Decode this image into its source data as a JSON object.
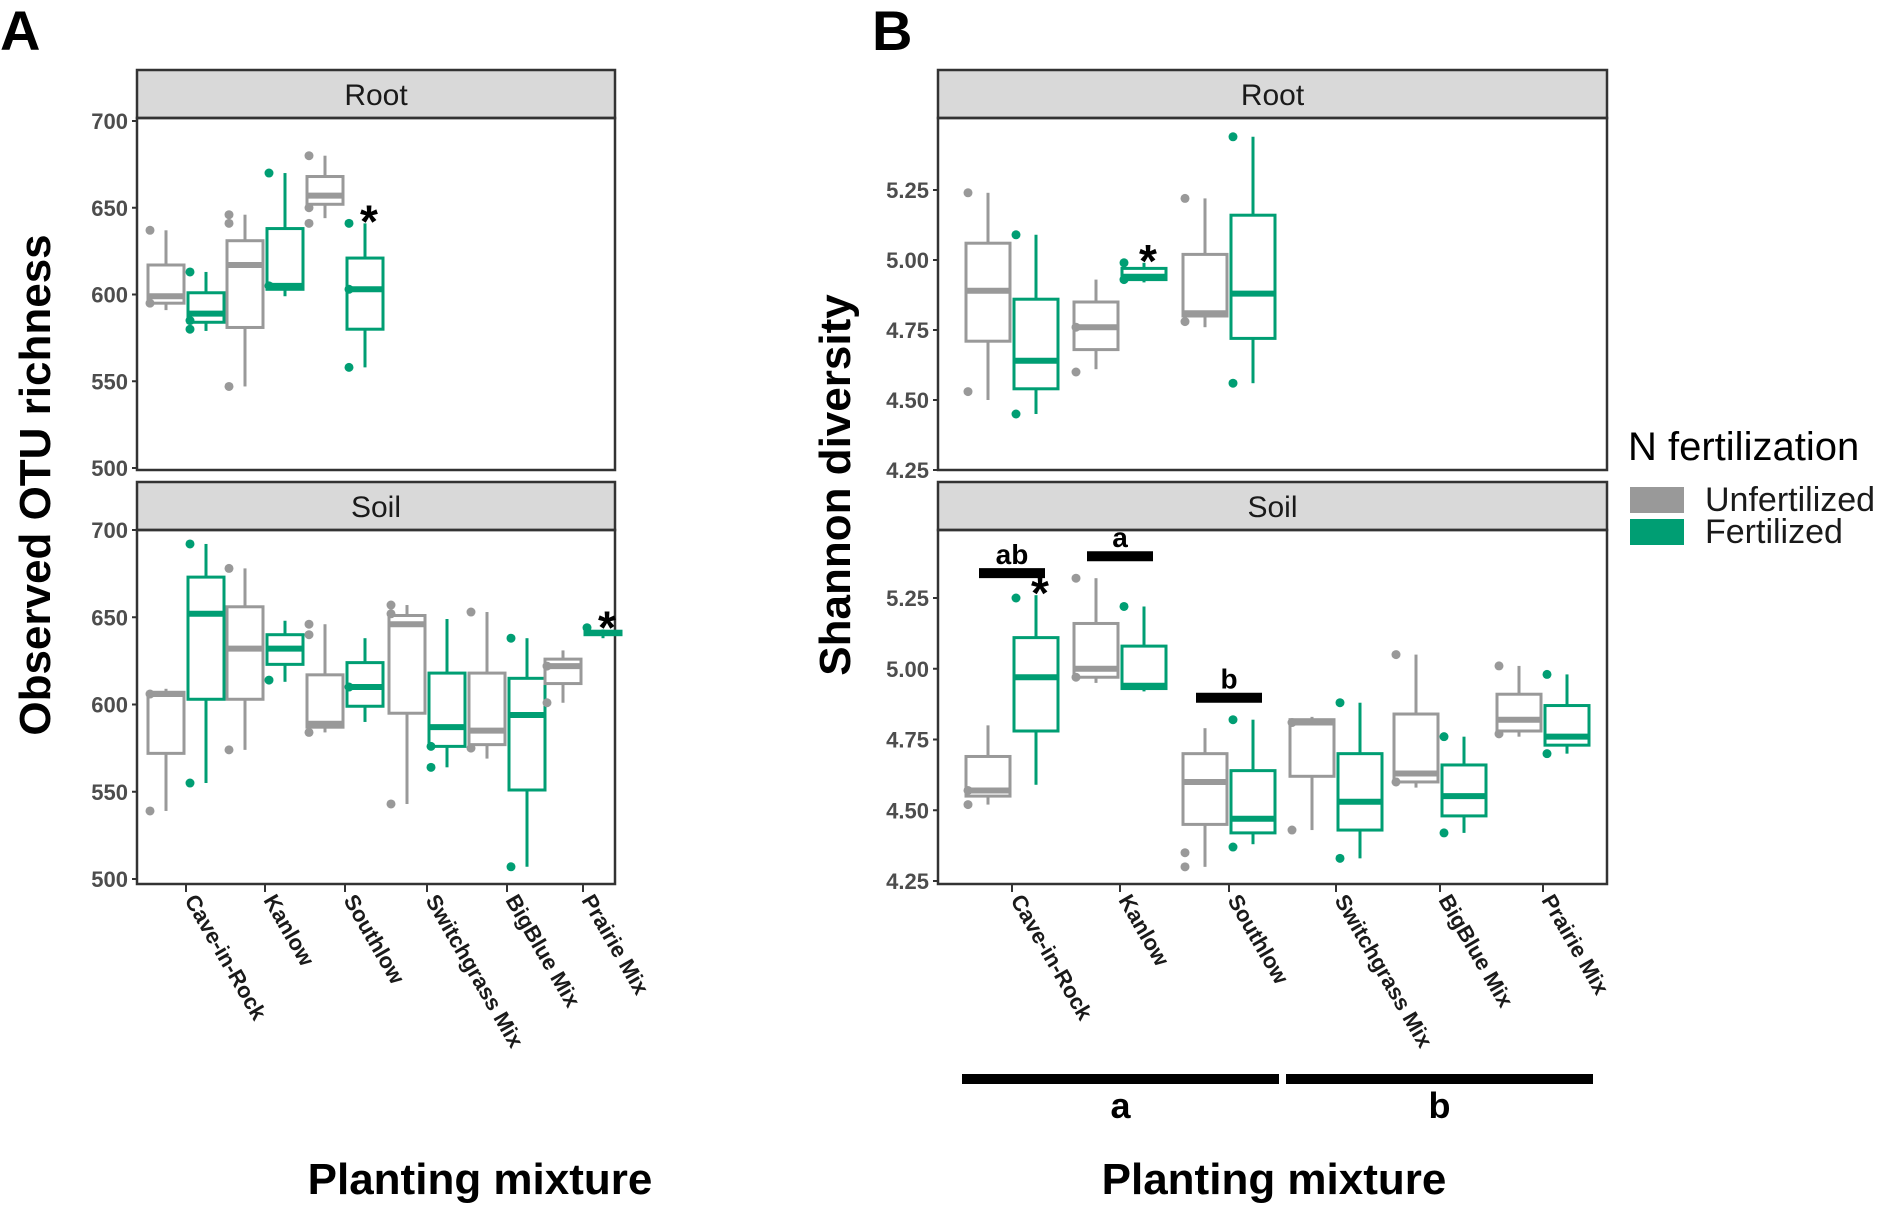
{
  "figure": {
    "panel_labels": [
      "A",
      "B"
    ],
    "legend": {
      "title": "N fertilization",
      "items": [
        {
          "label": "Unfertilized",
          "color": "#999999"
        },
        {
          "label": "Fertilized",
          "color": "#009E73"
        }
      ]
    },
    "colors": {
      "unfertilized": "#999999",
      "fertilized": "#009E73",
      "strip": "#d9d9d9"
    },
    "group_bars": [
      {
        "label": "a",
        "from": "Cave-in-Rock",
        "to": "Southlow"
      },
      {
        "label": "b",
        "from": "Switchgrass Mix",
        "to": "Prairie Mix"
      }
    ]
  },
  "chart_data": [
    {
      "type": "box",
      "panel": "A",
      "ylabel": "Observed OTU richness",
      "xlabel": "Planting mixture",
      "categories": [
        "Cave-in-Rock",
        "Kanlow",
        "Southlow",
        "Switchgrass Mix",
        "BigBlue Mix",
        "Prairie Mix"
      ],
      "ylim": [
        500,
        700
      ],
      "yticks": [
        500,
        550,
        600,
        650,
        700
      ],
      "facets": [
        {
          "name": "Root",
          "groups": [
            {
              "category": "Cave-in-Rock",
              "series": "Unfertilized",
              "min": 591,
              "q1": 595,
              "median": 599,
              "q3": 617,
              "max": 637,
              "points": [
                637,
                595
              ]
            },
            {
              "category": "Cave-in-Rock",
              "series": "Fertilized",
              "min": 579,
              "q1": 584,
              "median": 589,
              "q3": 601,
              "max": 613,
              "points": [
                580,
                585,
                613
              ]
            },
            {
              "category": "Kanlow",
              "series": "Unfertilized",
              "min": 547,
              "q1": 581,
              "median": 617,
              "q3": 631,
              "max": 646,
              "points": [
                547,
                641,
                646
              ]
            },
            {
              "category": "Kanlow",
              "series": "Fertilized",
              "min": 599,
              "q1": 603,
              "median": 605,
              "q3": 638,
              "max": 670,
              "points": [
                670,
                605
              ]
            },
            {
              "category": "Southlow",
              "series": "Unfertilized",
              "min": 644,
              "q1": 652,
              "median": 657,
              "q3": 668,
              "max": 680,
              "points": [
                680,
                650,
                641
              ]
            },
            {
              "category": "Southlow",
              "series": "Fertilized",
              "min": 558,
              "q1": 580,
              "median": 603,
              "q3": 621,
              "max": 641,
              "points": [
                641,
                558,
                603
              ]
            }
          ],
          "annotations": [
            {
              "category": "Southlow",
              "label": "*"
            }
          ]
        },
        {
          "name": "Soil",
          "groups": [
            {
              "category": "Cave-in-Rock",
              "series": "Unfertilized",
              "min": 539,
              "q1": 572,
              "median": 606,
              "q3": 607,
              "max": 609,
              "points": [
                539,
                606
              ]
            },
            {
              "category": "Cave-in-Rock",
              "series": "Fertilized",
              "min": 555,
              "q1": 603,
              "median": 652,
              "q3": 673,
              "max": 692,
              "points": [
                692,
                555
              ]
            },
            {
              "category": "Kanlow",
              "series": "Unfertilized",
              "min": 574,
              "q1": 603,
              "median": 632,
              "q3": 656,
              "max": 678,
              "points": [
                678,
                574
              ]
            },
            {
              "category": "Kanlow",
              "series": "Fertilized",
              "min": 613,
              "q1": 623,
              "median": 632,
              "q3": 640,
              "max": 648,
              "points": [
                614
              ]
            },
            {
              "category": "Southlow",
              "series": "Unfertilized",
              "min": 584,
              "q1": 587,
              "median": 589,
              "q3": 617,
              "max": 646,
              "points": [
                646,
                640,
                584
              ]
            },
            {
              "category": "Southlow",
              "series": "Fertilized",
              "min": 590,
              "q1": 599,
              "median": 610,
              "q3": 624,
              "max": 638,
              "points": [
                610
              ]
            },
            {
              "category": "Switchgrass Mix",
              "series": "Unfertilized",
              "min": 543,
              "q1": 595,
              "median": 646,
              "q3": 651,
              "max": 657,
              "points": [
                657,
                652,
                543
              ]
            },
            {
              "category": "Switchgrass Mix",
              "series": "Fertilized",
              "min": 564,
              "q1": 576,
              "median": 587,
              "q3": 618,
              "max": 649,
              "points": [
                564,
                576
              ]
            },
            {
              "category": "BigBlue Mix",
              "series": "Unfertilized",
              "min": 569,
              "q1": 577,
              "median": 585,
              "q3": 618,
              "max": 653,
              "points": [
                653,
                575
              ]
            },
            {
              "category": "BigBlue Mix",
              "series": "Fertilized",
              "min": 507,
              "q1": 551,
              "median": 594,
              "q3": 615,
              "max": 638,
              "points": [
                638,
                507
              ]
            },
            {
              "category": "Prairie Mix",
              "series": "Unfertilized",
              "min": 601,
              "q1": 612,
              "median": 622,
              "q3": 626,
              "max": 631,
              "points": [
                601,
                622
              ]
            },
            {
              "category": "Prairie Mix",
              "series": "Fertilized",
              "min": 638,
              "q1": 640,
              "median": 641,
              "q3": 642,
              "max": 643,
              "points": [
                644
              ]
            }
          ],
          "annotations": [
            {
              "category": "Prairie Mix",
              "label": "*"
            }
          ]
        }
      ]
    },
    {
      "type": "box",
      "panel": "B",
      "ylabel": "Shannon diversity",
      "xlabel": "Planting mixture",
      "categories": [
        "Cave-in-Rock",
        "Kanlow",
        "Southlow",
        "Switchgrass Mix",
        "BigBlue Mix",
        "Prairie Mix"
      ],
      "ylim": [
        4.25,
        5.45
      ],
      "yticks": [
        4.25,
        4.5,
        4.75,
        5.0,
        5.25
      ],
      "ytick_labels": [
        "4.25",
        "4.50",
        "4.75",
        "5.00",
        "5.25"
      ],
      "facets": [
        {
          "name": "Root",
          "groups": [
            {
              "category": "Cave-in-Rock",
              "series": "Unfertilized",
              "min": 4.5,
              "q1": 4.71,
              "median": 4.89,
              "q3": 5.06,
              "max": 5.24,
              "points": [
                5.24,
                4.53
              ]
            },
            {
              "category": "Cave-in-Rock",
              "series": "Fertilized",
              "min": 4.45,
              "q1": 4.54,
              "median": 4.64,
              "q3": 4.86,
              "max": 5.09,
              "points": [
                5.09,
                4.45
              ]
            },
            {
              "category": "Kanlow",
              "series": "Unfertilized",
              "min": 4.61,
              "q1": 4.68,
              "median": 4.76,
              "q3": 4.85,
              "max": 4.93,
              "points": [
                4.6,
                4.76
              ]
            },
            {
              "category": "Kanlow",
              "series": "Fertilized",
              "min": 4.92,
              "q1": 4.93,
              "median": 4.94,
              "q3": 4.97,
              "max": 4.99,
              "points": [
                4.99,
                4.93
              ]
            },
            {
              "category": "Southlow",
              "series": "Unfertilized",
              "min": 4.76,
              "q1": 4.8,
              "median": 4.81,
              "q3": 5.02,
              "max": 5.22,
              "points": [
                5.22,
                4.78
              ]
            },
            {
              "category": "Southlow",
              "series": "Fertilized",
              "min": 4.56,
              "q1": 4.72,
              "median": 4.88,
              "q3": 5.16,
              "max": 5.44,
              "points": [
                5.44,
                4.56
              ]
            }
          ],
          "annotations": [
            {
              "category": "Kanlow",
              "label": "*"
            }
          ]
        },
        {
          "name": "Soil",
          "groups": [
            {
              "category": "Cave-in-Rock",
              "series": "Unfertilized",
              "min": 4.52,
              "q1": 4.55,
              "median": 4.57,
              "q3": 4.69,
              "max": 4.8,
              "points": [
                4.52,
                4.57
              ]
            },
            {
              "category": "Cave-in-Rock",
              "series": "Fertilized",
              "min": 4.59,
              "q1": 4.78,
              "median": 4.97,
              "q3": 5.11,
              "max": 5.26,
              "points": [
                5.25
              ]
            },
            {
              "category": "Kanlow",
              "series": "Unfertilized",
              "min": 4.95,
              "q1": 4.97,
              "median": 5.0,
              "q3": 5.16,
              "max": 5.32,
              "points": [
                5.32,
                4.97
              ]
            },
            {
              "category": "Kanlow",
              "series": "Fertilized",
              "min": 4.92,
              "q1": 4.93,
              "median": 4.94,
              "q3": 5.08,
              "max": 5.22,
              "points": [
                5.22
              ]
            },
            {
              "category": "Southlow",
              "series": "Unfertilized",
              "min": 4.3,
              "q1": 4.45,
              "median": 4.6,
              "q3": 4.7,
              "max": 4.79,
              "points": [
                4.3,
                4.35
              ]
            },
            {
              "category": "Southlow",
              "series": "Fertilized",
              "min": 4.38,
              "q1": 4.42,
              "median": 4.47,
              "q3": 4.64,
              "max": 4.82,
              "points": [
                4.82,
                4.37
              ]
            },
            {
              "category": "Switchgrass Mix",
              "series": "Unfertilized",
              "min": 4.43,
              "q1": 4.62,
              "median": 4.81,
              "q3": 4.82,
              "max": 4.83,
              "points": [
                4.43,
                4.81
              ]
            },
            {
              "category": "Switchgrass Mix",
              "series": "Fertilized",
              "min": 4.33,
              "q1": 4.43,
              "median": 4.53,
              "q3": 4.7,
              "max": 4.88,
              "points": [
                4.88,
                4.33
              ]
            },
            {
              "category": "BigBlue Mix",
              "series": "Unfertilized",
              "min": 4.58,
              "q1": 4.6,
              "median": 4.63,
              "q3": 4.84,
              "max": 5.05,
              "points": [
                5.05,
                4.6
              ]
            },
            {
              "category": "BigBlue Mix",
              "series": "Fertilized",
              "min": 4.42,
              "q1": 4.48,
              "median": 4.55,
              "q3": 4.66,
              "max": 4.76,
              "points": [
                4.76,
                4.42
              ]
            },
            {
              "category": "Prairie Mix",
              "series": "Unfertilized",
              "min": 4.76,
              "q1": 4.78,
              "median": 4.82,
              "q3": 4.91,
              "max": 5.01,
              "points": [
                5.01,
                4.77
              ]
            },
            {
              "category": "Prairie Mix",
              "series": "Fertilized",
              "min": 4.7,
              "q1": 4.73,
              "median": 4.76,
              "q3": 4.87,
              "max": 4.98,
              "points": [
                4.98,
                4.7
              ]
            }
          ],
          "annotations": [
            {
              "category": "Cave-in-Rock",
              "label": "*"
            },
            {
              "category": "Cave-in-Rock",
              "label": "ab",
              "bar": true
            },
            {
              "category": "Kanlow",
              "label": "a",
              "bar": true
            },
            {
              "category": "Southlow",
              "label": "b",
              "bar": true
            }
          ]
        }
      ]
    }
  ]
}
